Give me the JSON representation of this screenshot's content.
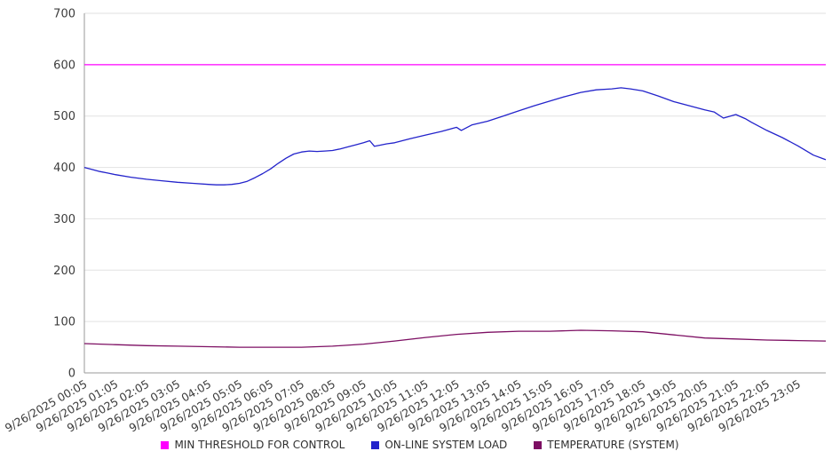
{
  "chart_data": {
    "type": "line",
    "title": "",
    "xlabel": "",
    "ylabel": "",
    "grid": true,
    "legend_position": "bottom",
    "ylim": [
      0,
      700
    ],
    "yticks": [
      0,
      100,
      200,
      300,
      400,
      500,
      600,
      700
    ],
    "x_range": [
      0,
      23.9
    ],
    "x_tick_labels": [
      "9/26/2025 00:05",
      "9/26/2025 01:05",
      "9/26/2025 02:05",
      "9/26/2025 03:05",
      "9/26/2025 04:05",
      "9/26/2025 05:05",
      "9/26/2025 06:05",
      "9/26/2025 07:05",
      "9/26/2025 08:05",
      "9/26/2025 09:05",
      "9/26/2025 10:05",
      "9/26/2025 11:05",
      "9/26/2025 12:05",
      "9/26/2025 13:05",
      "9/26/2025 14:05",
      "9/26/2025 15:05",
      "9/26/2025 16:05",
      "9/26/2025 17:05",
      "9/26/2025 18:05",
      "9/26/2025 19:05",
      "9/26/2025 20:05",
      "9/26/2025 21:05",
      "9/26/2025 22:05",
      "9/26/2025 23:05"
    ],
    "series": [
      {
        "id": "min-threshold",
        "name": "MIN THRESHOLD FOR CONTROL",
        "color": "#ff00ff",
        "x": [
          0,
          23.9
        ],
        "values": [
          600,
          600
        ]
      },
      {
        "id": "online-system-load",
        "name": "ON-LINE SYSTEM LOAD",
        "color": "#2323cb",
        "x": [
          0,
          0.25,
          0.5,
          0.75,
          1,
          1.5,
          2,
          2.5,
          3,
          3.5,
          4,
          4.25,
          4.5,
          4.75,
          5,
          5.25,
          5.5,
          5.75,
          6,
          6.25,
          6.5,
          6.75,
          7,
          7.25,
          7.5,
          7.75,
          8,
          8.25,
          8.5,
          8.75,
          9,
          9.2,
          9.35,
          9.5,
          9.75,
          10,
          10.5,
          11,
          11.5,
          12,
          12.15,
          12.5,
          13,
          13.5,
          14,
          14.5,
          15,
          15.5,
          16,
          16.5,
          17,
          17.3,
          17.6,
          18,
          18.5,
          19,
          19.5,
          20,
          20.3,
          20.6,
          21,
          21.3,
          21.5,
          22,
          22.5,
          23,
          23.5,
          23.9
        ],
        "values": [
          400,
          396,
          392,
          389,
          386,
          381,
          377,
          374,
          371,
          369,
          367,
          366,
          366,
          367,
          369,
          373,
          380,
          388,
          397,
          408,
          418,
          426,
          430,
          432,
          431,
          432,
          433,
          436,
          440,
          444,
          448,
          452,
          441,
          443,
          446,
          448,
          456,
          463,
          470,
          478,
          472,
          483,
          490,
          500,
          510,
          520,
          529,
          538,
          546,
          551,
          553,
          555,
          553,
          549,
          539,
          528,
          520,
          512,
          508,
          496,
          503,
          495,
          488,
          472,
          458,
          442,
          424,
          415
        ]
      },
      {
        "id": "temperature-system",
        "name": "TEMPERATURE (SYSTEM)",
        "color": "#7d0f63",
        "x": [
          0,
          1,
          2,
          3,
          4,
          5,
          6,
          7,
          8,
          9,
          10,
          11,
          12,
          13,
          14,
          15,
          16,
          17,
          18,
          19,
          20,
          21,
          22,
          23,
          23.9
        ],
        "values": [
          57,
          55,
          53,
          52,
          51,
          50,
          50,
          50,
          52,
          56,
          62,
          69,
          75,
          79,
          81,
          81,
          83,
          82,
          80,
          74,
          68,
          66,
          64,
          63,
          62
        ]
      }
    ]
  }
}
